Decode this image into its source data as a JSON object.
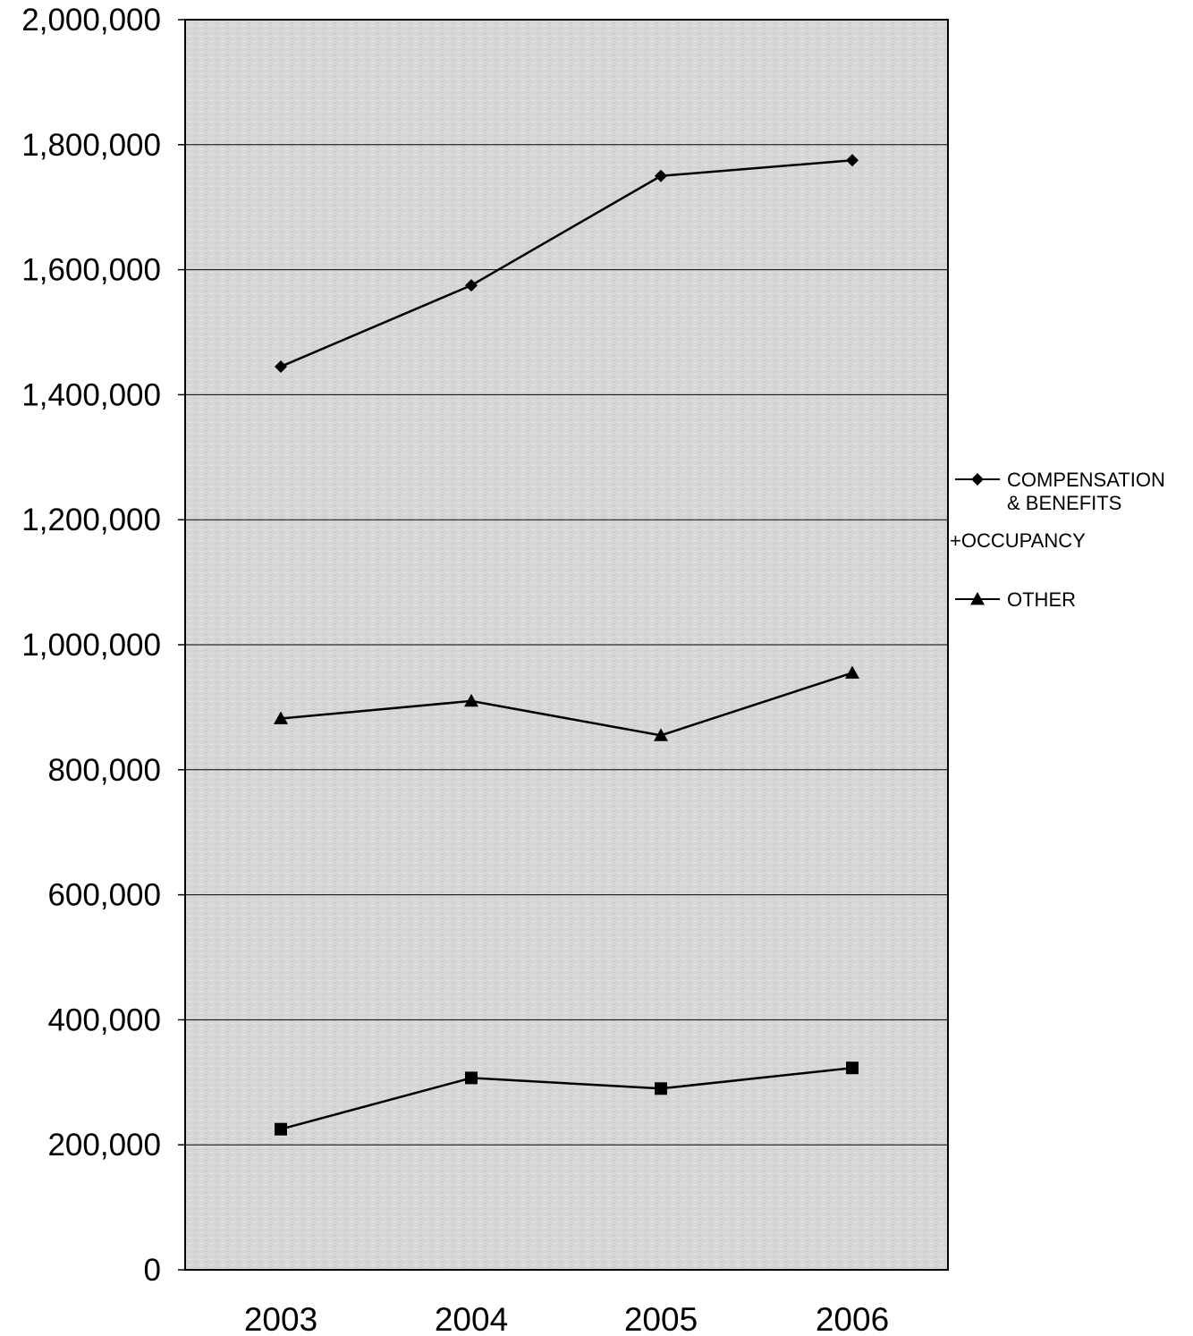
{
  "chart_data": {
    "type": "line",
    "title": "",
    "xlabel": "",
    "ylabel": "",
    "categories": [
      "2003",
      "2004",
      "2005",
      "2006"
    ],
    "ylim": [
      0,
      2000000
    ],
    "yticks": [
      0,
      200000,
      400000,
      600000,
      800000,
      1000000,
      1200000,
      1400000,
      1600000,
      1800000,
      2000000
    ],
    "ytick_labels": [
      "0",
      "200,000",
      "400,000",
      "600,000",
      "800,000",
      "1,000,000",
      "1,200,000",
      "1,400,000",
      "1,600,000",
      "1,800,000",
      "2,000,000"
    ],
    "grid": "horizontal",
    "legend_position": "right",
    "series": [
      {
        "name": "COMPENSATION & BENEFITS",
        "legend_lines": [
          "COMPENSATION",
          "& BENEFITS"
        ],
        "marker": "diamond",
        "values": [
          1445000,
          1575000,
          1750000,
          1775000
        ]
      },
      {
        "name": "OCCUPANCY",
        "legend_lines": [
          "+OCCUPANCY"
        ],
        "marker": "square",
        "values": [
          225000,
          307000,
          290000,
          323000
        ]
      },
      {
        "name": "OTHER",
        "legend_lines": [
          "OTHER"
        ],
        "marker": "triangle",
        "values": [
          882000,
          910000,
          855000,
          955000
        ]
      }
    ],
    "colors": {
      "line": "#000000",
      "plot_background": "#dcdcdc",
      "gridline": "#000000"
    }
  }
}
